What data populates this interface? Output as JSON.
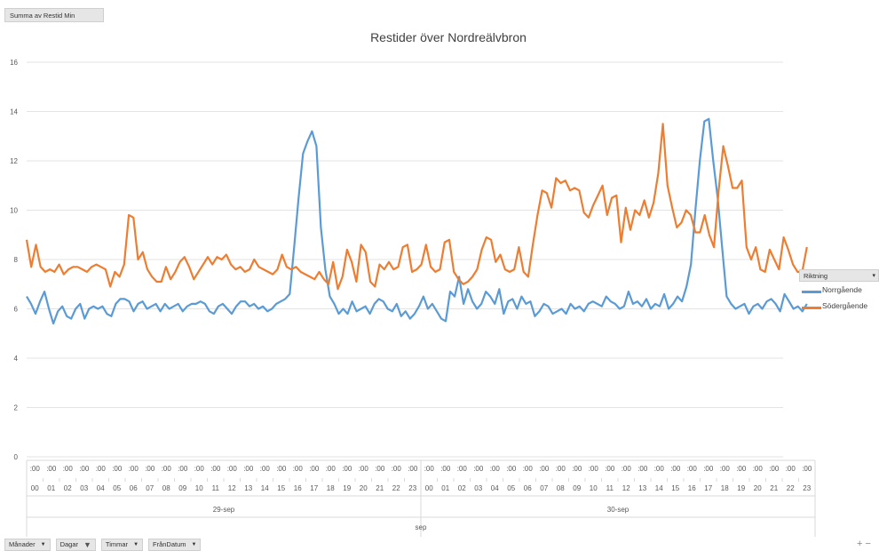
{
  "value_field": "Summa av Restid Min",
  "legend_header": "Riktning",
  "bottom_fields": [
    {
      "label": "Månader",
      "filtered": false
    },
    {
      "label": "Dagar",
      "filtered": true
    },
    {
      "label": "Timmar",
      "filtered": false
    },
    {
      "label": "FrånDatum",
      "filtered": false
    }
  ],
  "zoom_label": "+ −",
  "hour_minute_label": ":00",
  "chart_data": {
    "type": "line",
    "title": "Restider över Nordreälvbron",
    "ylim": [
      0,
      16
    ],
    "yticks": [
      0,
      2,
      4,
      6,
      8,
      10,
      12,
      14,
      16
    ],
    "grid": true,
    "legend_position": "right",
    "hours": [
      "00",
      "01",
      "02",
      "03",
      "04",
      "05",
      "06",
      "07",
      "08",
      "09",
      "10",
      "11",
      "12",
      "13",
      "14",
      "15",
      "16",
      "17",
      "18",
      "19",
      "20",
      "21",
      "22",
      "23"
    ],
    "days": [
      "29-sep",
      "30-sep"
    ],
    "month": "sep",
    "series": [
      {
        "name": "Norrgående",
        "color": "#5b9bd5",
        "values": [
          6.5,
          6.2,
          5.8,
          6.3,
          6.7,
          6.0,
          5.4,
          5.9,
          6.1,
          5.7,
          5.6,
          6.0,
          6.2,
          5.6,
          6.0,
          6.1,
          6.0,
          6.1,
          5.8,
          5.7,
          6.2,
          6.4,
          6.4,
          6.3,
          5.9,
          6.2,
          6.3,
          6.0,
          6.1,
          6.2,
          5.9,
          6.2,
          6.0,
          6.1,
          6.2,
          5.9,
          6.1,
          6.2,
          6.2,
          6.3,
          6.2,
          5.9,
          5.8,
          6.1,
          6.2,
          6.0,
          5.8,
          6.1,
          6.3,
          6.3,
          6.1,
          6.2,
          6.0,
          6.1,
          5.9,
          6.0,
          6.2,
          6.3,
          6.4,
          6.6,
          8.5,
          10.5,
          12.3,
          12.8,
          13.2,
          12.6,
          9.3,
          7.6,
          6.5,
          6.2,
          5.8,
          6.0,
          5.8,
          6.3,
          5.9,
          6.0,
          6.1,
          5.8,
          6.2,
          6.4,
          6.3,
          6.0,
          5.9,
          6.2,
          5.7,
          5.9,
          5.6,
          5.8,
          6.1,
          6.5,
          6.0,
          6.2,
          5.9,
          5.6,
          5.5,
          6.7,
          6.5,
          7.3,
          6.2,
          6.8,
          6.3,
          6.0,
          6.2,
          6.7,
          6.5,
          6.2,
          6.8,
          5.8,
          6.3,
          6.4,
          6.0,
          6.5,
          6.2,
          6.3,
          5.7,
          5.9,
          6.2,
          6.1,
          5.8,
          5.9,
          6.0,
          5.8,
          6.2,
          6.0,
          6.1,
          5.9,
          6.2,
          6.3,
          6.2,
          6.1,
          6.5,
          6.3,
          6.2,
          6.0,
          6.1,
          6.7,
          6.2,
          6.3,
          6.1,
          6.4,
          6.0,
          6.2,
          6.1,
          6.6,
          6.0,
          6.2,
          6.5,
          6.3,
          6.9,
          7.8,
          10.0,
          12.0,
          13.6,
          13.7,
          12.0,
          10.5,
          8.5,
          6.5,
          6.2,
          6.0,
          6.1,
          6.2,
          5.8,
          6.1,
          6.2,
          6.0,
          6.3,
          6.4,
          6.2,
          5.9,
          6.6,
          6.3,
          6.0,
          6.1,
          5.9,
          6.2
        ]
      },
      {
        "name": "Södergående",
        "color": "#ed7d31",
        "values": [
          8.8,
          7.7,
          8.6,
          7.7,
          7.5,
          7.6,
          7.5,
          7.8,
          7.4,
          7.6,
          7.7,
          7.7,
          7.6,
          7.5,
          7.7,
          7.8,
          7.7,
          7.6,
          6.9,
          7.5,
          7.3,
          7.8,
          9.8,
          9.7,
          8.0,
          8.3,
          7.6,
          7.3,
          7.1,
          7.1,
          7.7,
          7.2,
          7.5,
          7.9,
          8.1,
          7.7,
          7.2,
          7.5,
          7.8,
          8.1,
          7.8,
          8.1,
          8.0,
          8.2,
          7.8,
          7.6,
          7.7,
          7.5,
          7.6,
          8.0,
          7.7,
          7.6,
          7.5,
          7.4,
          7.6,
          8.2,
          7.7,
          7.6,
          7.7,
          7.5,
          7.4,
          7.3,
          7.2,
          7.5,
          7.2,
          7.0,
          7.9,
          6.8,
          7.3,
          8.4,
          7.9,
          7.1,
          8.6,
          8.3,
          7.1,
          6.9,
          7.8,
          7.6,
          7.9,
          7.6,
          7.7,
          8.5,
          8.6,
          7.5,
          7.6,
          7.8,
          8.6,
          7.7,
          7.5,
          7.6,
          8.7,
          8.8,
          7.5,
          7.2,
          7.0,
          7.1,
          7.3,
          7.6,
          8.4,
          8.9,
          8.8,
          7.9,
          8.2,
          7.6,
          7.5,
          7.6,
          8.5,
          7.5,
          7.3,
          8.6,
          9.8,
          10.8,
          10.7,
          10.1,
          11.3,
          11.1,
          11.2,
          10.8,
          10.9,
          10.8,
          9.9,
          9.7,
          10.2,
          10.6,
          11.0,
          9.8,
          10.5,
          10.6,
          8.7,
          10.1,
          9.2,
          10.0,
          9.8,
          10.4,
          9.7,
          10.3,
          11.5,
          13.5,
          11.0,
          10.1,
          9.3,
          9.5,
          10.0,
          9.8,
          9.1,
          9.1,
          9.8,
          9.0,
          8.5,
          10.8,
          12.6,
          11.8,
          10.9,
          10.9,
          11.2,
          8.5,
          8.0,
          8.5,
          7.6,
          7.5,
          8.4,
          8.0,
          7.6,
          8.9,
          8.4,
          7.8,
          7.5,
          7.5,
          8.5
        ]
      }
    ]
  }
}
